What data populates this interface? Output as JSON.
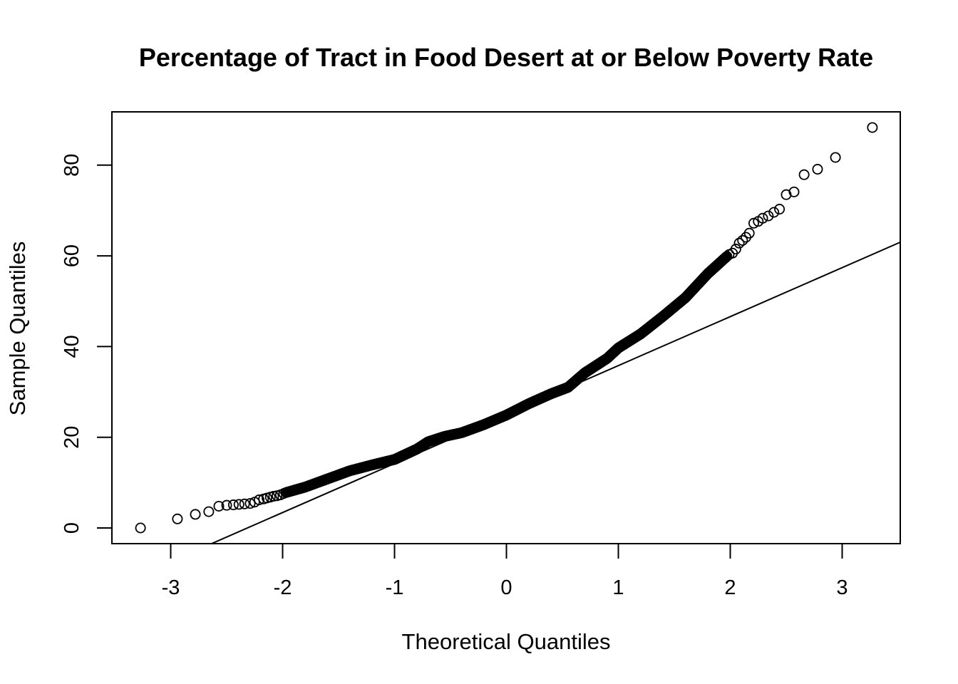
{
  "chart_data": {
    "type": "scatter",
    "title": "Percentage of Tract in Food Desert at or Below Poverty Rate",
    "xlabel": "Theoretical Quantiles",
    "ylabel": "Sample Quantiles",
    "xlim": [
      -3.5,
      3.5
    ],
    "ylim": [
      -3.5,
      91
    ],
    "xticks": [
      -3,
      -2,
      -1,
      0,
      1,
      2,
      3
    ],
    "yticks": [
      0,
      20,
      40,
      60,
      80
    ],
    "xtick_labels": [
      "-3",
      "-2",
      "-1",
      "0",
      "1",
      "2",
      "3"
    ],
    "ytick_labels": [
      "0",
      "20",
      "40",
      "60",
      "80"
    ],
    "marker": "open-circle",
    "reference_line": {
      "type": "qqline",
      "intercept": 25.0,
      "slope": 10.8
    },
    "outer_points": {
      "x": [
        -3.27,
        -2.94,
        -2.78,
        -2.66,
        -2.57,
        -2.5,
        -2.44,
        -2.39,
        -2.34,
        -2.29,
        -2.25,
        -2.21,
        -2.17,
        -2.14,
        -2.11,
        -2.08,
        -2.05,
        -2.02,
        -1.99,
        1.99,
        2.02,
        2.05,
        2.08,
        2.11,
        2.14,
        2.17,
        2.21,
        2.25,
        2.29,
        2.34,
        2.39,
        2.44,
        2.5,
        2.57,
        2.66,
        2.78,
        2.94,
        3.27
      ],
      "y": [
        0.0,
        2.0,
        3.0,
        3.6,
        4.8,
        5.0,
        5.1,
        5.2,
        5.3,
        5.4,
        5.7,
        6.2,
        6.4,
        6.6,
        6.8,
        7.0,
        7.1,
        7.3,
        7.6,
        60.3,
        60.6,
        61.5,
        62.8,
        63.4,
        64.1,
        65.0,
        67.2,
        67.6,
        68.3,
        68.8,
        69.6,
        70.3,
        73.5,
        74.1,
        77.9,
        79.1,
        81.7,
        88.3
      ]
    },
    "inner_curve": {
      "x": [
        -1.97,
        -1.8,
        -1.6,
        -1.4,
        -1.2,
        -1.0,
        -0.8,
        -0.7,
        -0.55,
        -0.4,
        -0.2,
        0.0,
        0.2,
        0.4,
        0.55,
        0.7,
        0.9,
        1.0,
        1.2,
        1.4,
        1.6,
        1.8,
        1.97
      ],
      "y": [
        7.8,
        9.0,
        10.8,
        12.6,
        13.9,
        15.1,
        17.4,
        19.0,
        20.2,
        21.0,
        22.8,
        24.9,
        27.4,
        29.6,
        31.0,
        34.2,
        37.4,
        39.7,
        42.8,
        46.7,
        50.8,
        56.1,
        59.9
      ]
    },
    "n_inner_points": 700
  }
}
